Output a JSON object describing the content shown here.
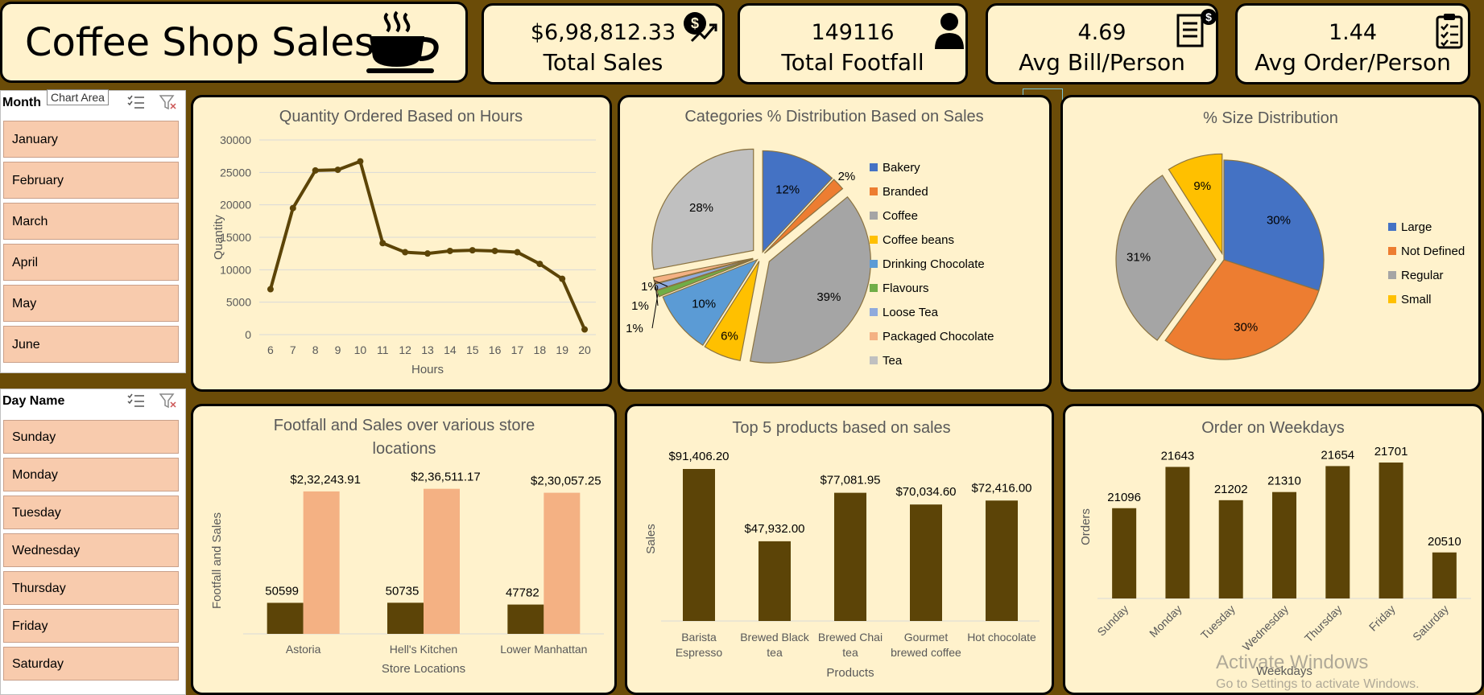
{
  "title": "Coffee Shop Sales",
  "kpis": [
    {
      "value": "$6,98,812.33",
      "label": "Total Sales",
      "icon": "dollar-chart-icon"
    },
    {
      "value": "149116",
      "label": "Total Footfall",
      "icon": "person-icon"
    },
    {
      "value": "4.69",
      "label": "Avg Bill/Person",
      "icon": "bill-icon"
    },
    {
      "value": "1.44",
      "label": "Avg Order/Person",
      "icon": "clipboard-icon"
    }
  ],
  "month_slicer": {
    "header": "Month",
    "tooltip": "Chart Area",
    "items": [
      "January",
      "February",
      "March",
      "April",
      "May",
      "June"
    ]
  },
  "day_slicer": {
    "header": "Day Name",
    "items": [
      "Sunday",
      "Monday",
      "Tuesday",
      "Wednesday",
      "Thursday",
      "Friday",
      "Saturday"
    ]
  },
  "watermark": {
    "line1": "Activate Windows",
    "line2": "Go to Settings to activate Windows."
  },
  "colors": {
    "bar_dark": "#5c4407",
    "bar_light": "#f4b183",
    "card_bg": "#fff2cc",
    "page_bg": "#6b4c08"
  },
  "chart_data": [
    {
      "type": "line",
      "title": "Quantity Ordered Based on Hours",
      "xlabel": "Hours",
      "ylabel": "Quantity",
      "x": [
        6,
        7,
        8,
        9,
        10,
        11,
        12,
        13,
        14,
        15,
        16,
        17,
        18,
        19,
        20
      ],
      "values": [
        7000,
        19500,
        25300,
        25400,
        26700,
        14100,
        12700,
        12500,
        12900,
        13000,
        12900,
        12700,
        10900,
        8600,
        800
      ],
      "ylim": [
        0,
        30000
      ],
      "yticks": [
        0,
        5000,
        10000,
        15000,
        20000,
        25000,
        30000
      ],
      "grid": true,
      "color": "#5c4407"
    },
    {
      "type": "pie",
      "title": "Categories % Distribution Based on Sales",
      "categories": [
        "Bakery",
        "Branded",
        "Coffee",
        "Coffee beans",
        "Drinking Chocolate",
        "Flavours",
        "Loose Tea",
        "Packaged Chocolate",
        "Tea"
      ],
      "values": [
        12,
        2,
        39,
        6,
        10,
        1,
        1,
        1,
        28
      ],
      "labels": [
        "12%",
        "2%",
        "39%",
        "6%",
        "10%",
        "1%",
        "1%",
        "1%",
        "28%"
      ],
      "colors": [
        "#4472c4",
        "#ed7d31",
        "#a5a5a5",
        "#ffc000",
        "#5b9bd5",
        "#70ad47",
        "#8faadc",
        "#f4b183",
        "#c0c0c0"
      ],
      "legend": "right"
    },
    {
      "type": "pie",
      "title": "% Size Distribution",
      "categories": [
        "Large",
        "Not Defined",
        "Regular",
        "Small"
      ],
      "values": [
        30,
        30,
        31,
        9
      ],
      "labels": [
        "30%",
        "30%",
        "31%",
        "9%"
      ],
      "colors": [
        "#4472c4",
        "#ed7d31",
        "#a5a5a5",
        "#ffc000"
      ],
      "legend": "right"
    },
    {
      "type": "bar",
      "title": "Footfall and Sales over various store locations",
      "title_lines": [
        "Footfall and Sales over various store",
        "locations"
      ],
      "xlabel": "Store Locations",
      "ylabel": "Footfall and Sales",
      "categories": [
        "Astoria",
        "Hell's Kitchen",
        "Lower Manhattan"
      ],
      "series": [
        {
          "values": [
            50599,
            50735,
            47782
          ],
          "labels": [
            "50599",
            "50735",
            "47782"
          ],
          "color": "#5c4407"
        },
        {
          "values": [
            232243.91,
            236511.17,
            230057.25
          ],
          "labels": [
            "$2,32,243.91",
            "$2,36,511.17",
            "$2,30,057.25"
          ],
          "color": "#f4b183"
        }
      ]
    },
    {
      "type": "bar",
      "title": "Top 5 products based on sales",
      "xlabel": "Products",
      "ylabel": "Sales",
      "categories": [
        "Barista Espresso",
        "Brewed Black tea",
        "Brewed Chai tea",
        "Gourmet brewed coffee",
        "Hot chocolate"
      ],
      "category_lines": [
        [
          "Barista",
          "Espresso"
        ],
        [
          "Brewed Black",
          "tea"
        ],
        [
          "Brewed Chai",
          "tea"
        ],
        [
          "Gourmet",
          "brewed coffee"
        ],
        [
          "Hot chocolate"
        ]
      ],
      "values": [
        91406.2,
        47932.0,
        77081.95,
        70034.6,
        72416.0
      ],
      "labels": [
        "$91,406.20",
        "$47,932.00",
        "$77,081.95",
        "$70,034.60",
        "$72,416.00"
      ],
      "color": "#5c4407"
    },
    {
      "type": "bar",
      "title": "Order on Weekdays",
      "xlabel": "Weekdays",
      "ylabel": "Orders",
      "categories": [
        "Sunday",
        "Monday",
        "Tuesday",
        "Wednesday",
        "Thursday",
        "Friday",
        "Saturday"
      ],
      "values": [
        21096,
        21643,
        21202,
        21310,
        21654,
        21701,
        20510
      ],
      "labels": [
        "21096",
        "21643",
        "21202",
        "21310",
        "21654",
        "21701",
        "20510"
      ],
      "color": "#5c4407"
    }
  ]
}
